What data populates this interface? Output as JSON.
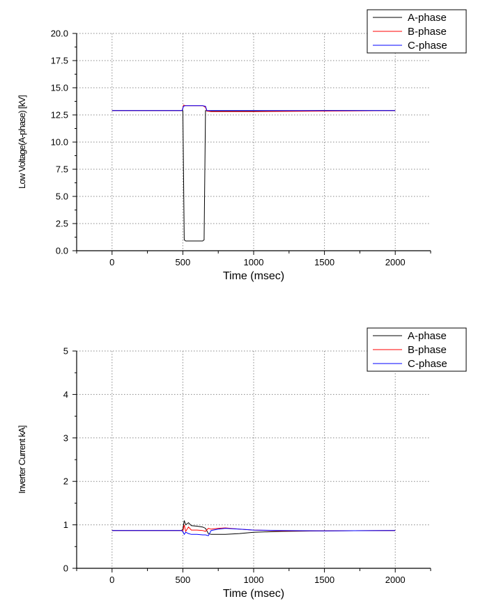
{
  "chart_data": [
    {
      "type": "line",
      "xlabel": "Time (msec)",
      "ylabel": "Low Voltage(A-phase) [kV]",
      "xlim": [
        -250,
        2250
      ],
      "ylim": [
        0,
        20
      ],
      "xticks": [
        0,
        500,
        1000,
        1500,
        2000
      ],
      "yticks": [
        0.0,
        2.5,
        5.0,
        7.5,
        10.0,
        12.5,
        15.0,
        17.5,
        20.0
      ],
      "ytick_labels": [
        "0.0",
        "2.5",
        "5.0",
        "7.5",
        "10.0",
        "12.5",
        "15.0",
        "17.5",
        "20.0"
      ],
      "grid": true,
      "legend_position": "top-right",
      "series": [
        {
          "name": "A-phase",
          "color": "#000000",
          "x": [
            0,
            490,
            500,
            510,
            520,
            640,
            650,
            660,
            680,
            800,
            1000,
            1500,
            2000
          ],
          "y": [
            12.9,
            12.9,
            12.9,
            1.0,
            0.9,
            0.9,
            1.0,
            12.9,
            12.85,
            12.85,
            12.85,
            12.9,
            12.9
          ]
        },
        {
          "name": "B-phase",
          "color": "#ff0000",
          "x": [
            0,
            495,
            505,
            520,
            640,
            660,
            670,
            700,
            1000,
            1500,
            2000
          ],
          "y": [
            12.9,
            12.9,
            13.4,
            13.35,
            13.35,
            13.2,
            12.85,
            12.8,
            12.8,
            12.85,
            12.9
          ],
          "note_omit": true
        },
        {
          "name": "C-phase",
          "color": "#0000ff",
          "x": [
            0,
            495,
            505,
            520,
            640,
            660,
            670,
            700,
            1000,
            1500,
            2000
          ],
          "y": [
            12.9,
            12.9,
            13.3,
            13.35,
            13.35,
            13.3,
            12.9,
            12.9,
            12.9,
            12.9,
            12.9
          ]
        }
      ]
    },
    {
      "type": "line",
      "xlabel": "Time (msec)",
      "ylabel": "Inverter Current kA]",
      "xlim": [
        -250,
        2250
      ],
      "ylim": [
        0,
        5
      ],
      "xticks": [
        0,
        500,
        1000,
        1500,
        2000
      ],
      "yticks": [
        0,
        1,
        2,
        3,
        4,
        5
      ],
      "ytick_labels": [
        "0",
        "1",
        "2",
        "3",
        "4",
        "5"
      ],
      "grid": true,
      "legend_position": "top-right",
      "series": [
        {
          "name": "A-phase",
          "color": "#000000",
          "x": [
            0,
            490,
            500,
            510,
            520,
            540,
            560,
            600,
            640,
            660,
            680,
            700,
            750,
            800,
            900,
            1000,
            1200,
            1500,
            2000
          ],
          "y": [
            0.87,
            0.87,
            0.9,
            1.1,
            1.0,
            1.05,
            0.98,
            0.97,
            0.95,
            0.92,
            0.8,
            0.78,
            0.78,
            0.78,
            0.8,
            0.83,
            0.85,
            0.86,
            0.87
          ]
        },
        {
          "name": "B-phase",
          "color": "#ff0000",
          "x": [
            0,
            490,
            500,
            510,
            520,
            540,
            560,
            600,
            640,
            660,
            680,
            700,
            750,
            800,
            900,
            1000,
            1200,
            1500,
            2000
          ],
          "y": [
            0.87,
            0.87,
            0.85,
            1.0,
            0.85,
            0.95,
            0.88,
            0.88,
            0.87,
            0.85,
            0.92,
            0.9,
            0.92,
            0.93,
            0.9,
            0.88,
            0.86,
            0.86,
            0.87
          ]
        },
        {
          "name": "C-phase",
          "color": "#0000ff",
          "x": [
            0,
            490,
            500,
            510,
            520,
            540,
            560,
            600,
            640,
            660,
            680,
            700,
            750,
            800,
            900,
            1000,
            1200,
            1500,
            2000
          ],
          "y": [
            0.87,
            0.87,
            0.85,
            0.78,
            0.83,
            0.8,
            0.78,
            0.78,
            0.77,
            0.77,
            0.75,
            0.87,
            0.9,
            0.92,
            0.9,
            0.88,
            0.87,
            0.86,
            0.87
          ]
        }
      ]
    }
  ]
}
